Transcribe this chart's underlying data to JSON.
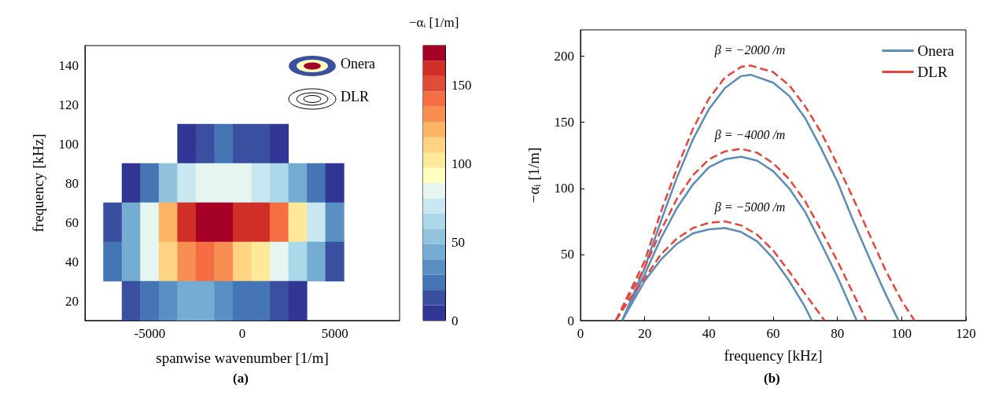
{
  "chart_data": [
    {
      "type": "heatmap",
      "xlabel": "spanwise wavenumber [1/m]",
      "ylabel": "frequency [kHz]",
      "clabel": "−αᵢ [1/m]",
      "categories": [
        null,
        null,
        null,
        "-5000",
        null,
        null,
        null,
        null,
        "0",
        null,
        null,
        null,
        null,
        "5000",
        null,
        null,
        null
      ],
      "y_categories": [
        "140",
        "120",
        "100",
        "80",
        "60",
        "40",
        "20"
      ],
      "cells": [
        [
          null,
          null,
          null,
          null,
          null,
          null,
          null,
          null,
          null,
          null,
          null,
          null,
          null,
          null,
          null,
          null,
          null
        ],
        [
          null,
          null,
          null,
          null,
          null,
          null,
          null,
          null,
          null,
          null,
          null,
          null,
          null,
          null,
          null,
          null,
          null
        ],
        [
          null,
          null,
          null,
          null,
          null,
          5,
          15,
          20,
          15,
          10,
          5,
          null,
          null,
          null,
          null,
          null,
          null
        ],
        [
          null,
          null,
          5,
          25,
          50,
          70,
          80,
          85,
          80,
          75,
          65,
          45,
          25,
          5,
          null,
          null,
          null
        ],
        [
          null,
          15,
          40,
          80,
          125,
          160,
          175,
          170,
          165,
          160,
          140,
          105,
          70,
          30,
          null,
          null,
          null
        ],
        [
          null,
          20,
          45,
          80,
          115,
          135,
          140,
          130,
          115,
          100,
          85,
          65,
          40,
          15,
          null,
          null,
          null
        ],
        [
          null,
          null,
          10,
          20,
          35,
          40,
          40,
          35,
          25,
          20,
          15,
          5,
          null,
          null,
          null,
          null,
          null
        ]
      ],
      "clim": [
        0,
        175
      ],
      "cticks": [
        0,
        50,
        100,
        150
      ],
      "annotations": [
        "Onera",
        "DLR",
        "(a)"
      ]
    },
    {
      "type": "line",
      "xlabel": "frequency [kHz]",
      "ylabel": "−αᵢ [1/m]",
      "xlim": [
        0,
        120
      ],
      "xticks": [
        0,
        20,
        40,
        60,
        80,
        100,
        120
      ],
      "ylim": [
        0,
        220
      ],
      "yticks": [
        0,
        50,
        100,
        150,
        200
      ],
      "legend": "top right",
      "marker": "none",
      "series": [
        {
          "name": "Onera",
          "color": "#5b8db8",
          "line_style": "solid",
          "x": [
            13,
            20,
            25,
            30,
            35,
            40,
            45,
            50,
            53,
            60,
            65,
            70,
            75,
            80,
            85,
            90,
            95,
            99
          ],
          "values": [
            0,
            40,
            75,
            108,
            137,
            160,
            176,
            185,
            186,
            180,
            170,
            153,
            130,
            105,
            75,
            47,
            20,
            0
          ]
        },
        {
          "name": "DLR",
          "color": "#e8443a",
          "line_style": "dashed",
          "x": [
            11,
            15,
            20,
            25,
            30,
            35,
            40,
            45,
            50,
            53,
            60,
            65,
            70,
            75,
            80,
            85,
            90,
            95,
            100,
            104
          ],
          "values": [
            0,
            20,
            45,
            82,
            115,
            145,
            168,
            184,
            192,
            193,
            188,
            178,
            162,
            142,
            118,
            92,
            65,
            38,
            15,
            0
          ]
        },
        {
          "color": "#5b8db8",
          "line_style": "solid",
          "x": [
            13,
            20,
            25,
            30,
            35,
            40,
            45,
            50,
            55,
            60,
            65,
            70,
            75,
            80,
            86
          ],
          "values": [
            0,
            35,
            62,
            85,
            103,
            116,
            122,
            124,
            121,
            113,
            100,
            82,
            58,
            33,
            0
          ]
        },
        {
          "color": "#e8443a",
          "line_style": "dashed",
          "x": [
            11,
            15,
            20,
            25,
            30,
            35,
            40,
            45,
            50,
            55,
            60,
            65,
            70,
            75,
            80,
            85,
            89
          ],
          "values": [
            0,
            18,
            40,
            68,
            92,
            110,
            122,
            128,
            130,
            127,
            119,
            107,
            90,
            68,
            45,
            20,
            0
          ]
        },
        {
          "color": "#5b8db8",
          "line_style": "solid",
          "x": [
            13,
            20,
            25,
            30,
            35,
            40,
            45,
            50,
            55,
            60,
            65,
            70,
            72
          ],
          "values": [
            0,
            30,
            46,
            58,
            66,
            69,
            70,
            67,
            60,
            47,
            30,
            10,
            0
          ]
        },
        {
          "color": "#e8443a",
          "line_style": "dashed",
          "x": [
            11,
            15,
            20,
            25,
            30,
            35,
            40,
            45,
            50,
            55,
            60,
            65,
            70,
            76
          ],
          "values": [
            0,
            15,
            32,
            50,
            62,
            70,
            74,
            75,
            72,
            65,
            53,
            37,
            20,
            0
          ]
        }
      ],
      "annotations": [
        "β = −2000 /m",
        "β = −4000 /m",
        "β = −5000 /m",
        "(b)"
      ]
    }
  ]
}
